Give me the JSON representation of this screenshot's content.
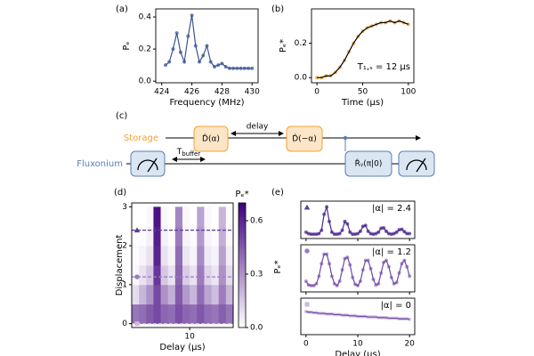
{
  "chart_data": [
    {
      "type": "line",
      "panel": "(a)",
      "xlabel": "Frequency (MHz)",
      "ylabel": "Pₑ",
      "x": [
        424.25,
        424.5,
        424.75,
        425,
        425.25,
        425.5,
        425.75,
        426,
        426.25,
        426.5,
        426.75,
        427,
        427.25,
        427.5,
        427.75,
        428,
        428.25,
        428.5,
        428.75,
        429,
        429.25,
        429.5,
        429.75,
        430
      ],
      "series": [
        {
          "color": "#4a64a0",
          "line_color": "#3c5590",
          "values": [
            0.1,
            0.12,
            0.2,
            0.3,
            0.18,
            0.12,
            0.28,
            0.41,
            0.22,
            0.12,
            0.16,
            0.22,
            0.12,
            0.09,
            0.1,
            0.11,
            0.09,
            0.08,
            0.08,
            0.08,
            0.08,
            0.08,
            0.08,
            0.08
          ]
        }
      ],
      "xlim": [
        423.6,
        430.4
      ],
      "xticks": [
        424,
        426,
        428,
        430
      ],
      "ylim": [
        -0.01,
        0.45
      ],
      "yticks": [
        {
          "value": 0,
          "label": "0.0"
        },
        {
          "value": 0.2,
          "label": "0.2"
        },
        {
          "value": 0.4,
          "label": "0.4"
        }
      ]
    },
    {
      "type": "line",
      "panel": "(b)",
      "xlabel": "Time (μs)",
      "ylabel": "Pₑ*",
      "annotation": "T₁,ₛ = 12 μs",
      "x": [
        0,
        5,
        10,
        15,
        20,
        25,
        30,
        35,
        40,
        45,
        50,
        55,
        60,
        65,
        70,
        75,
        80,
        85,
        90,
        95,
        100
      ],
      "series": [
        {
          "color": "#f5a030",
          "line_color": "#000000",
          "values": [
            0,
            0,
            0.01,
            0.01,
            0.03,
            0.06,
            0.1,
            0.15,
            0.2,
            0.24,
            0.27,
            0.29,
            0.3,
            0.31,
            0.32,
            0.32,
            0.33,
            0.32,
            0.33,
            0.32,
            0.31
          ]
        }
      ],
      "xlim": [
        -6,
        106
      ],
      "xticks": [
        0,
        50,
        100
      ],
      "ylim": [
        -0.03,
        0.4
      ],
      "yticks": [
        {
          "value": 0,
          "label": "0.0"
        },
        {
          "value": 0.2,
          "label": "0.2"
        }
      ]
    },
    {
      "type": "heatmap",
      "panel": "(d)",
      "xlabel": "Delay (μs)",
      "ylabel": "Displacement",
      "zlabel": "Pₑ*",
      "x": [
        2.5,
        3.5,
        4.5,
        5.5,
        6.5,
        7.5,
        8.5,
        9.5,
        10.5,
        11.5,
        12.5,
        13.5,
        14.5,
        15.5
      ],
      "y": [
        0.25,
        0.75,
        1.25,
        1.75,
        2.25,
        2.75
      ],
      "z": [
        [
          0.38,
          0.4,
          0.45,
          0.5,
          0.42,
          0.4,
          0.48,
          0.42,
          0.4,
          0.46,
          0.4,
          0.38,
          0.44,
          0.38
        ],
        [
          0.1,
          0.2,
          0.3,
          0.5,
          0.3,
          0.22,
          0.45,
          0.28,
          0.2,
          0.4,
          0.25,
          0.18,
          0.36,
          0.2
        ],
        [
          0.02,
          0.08,
          0.15,
          0.55,
          0.15,
          0.08,
          0.42,
          0.14,
          0.08,
          0.36,
          0.12,
          0.07,
          0.3,
          0.1
        ],
        [
          0.01,
          0.03,
          0.08,
          0.6,
          0.08,
          0.03,
          0.4,
          0.07,
          0.03,
          0.32,
          0.06,
          0.03,
          0.26,
          0.05
        ],
        [
          0,
          0.01,
          0.04,
          0.62,
          0.04,
          0.01,
          0.36,
          0.03,
          0.01,
          0.28,
          0.03,
          0.01,
          0.22,
          0.02
        ],
        [
          0,
          0,
          0.02,
          0.65,
          0.02,
          0,
          0.33,
          0.02,
          0,
          0.25,
          0.02,
          0,
          0.2,
          0.01
        ]
      ],
      "colormap": [
        "#ffffff",
        "#3f007d"
      ],
      "zlim": [
        0,
        0.7
      ],
      "zticks": [
        {
          "value": 0,
          "label": "0.0"
        },
        0.3,
        0.6
      ],
      "cuts": [
        2.4,
        1.2,
        0
      ],
      "cut_colors": [
        "#5b3a9a",
        "#9b7cc2",
        "#cdb8e0"
      ],
      "cut_markers": [
        "triangle",
        "circle",
        "square"
      ],
      "xlim": [
        2,
        16
      ],
      "xticks": [
        10
      ],
      "ylim": [
        -0.1,
        3.1
      ],
      "yticks": [
        0,
        1,
        2,
        3
      ]
    },
    {
      "type": "line",
      "panel": "(e)",
      "ylabel": "Pₑ*",
      "annotation": "|α| = 2.4",
      "x": [
        0,
        0.5,
        1,
        1.5,
        2,
        2.5,
        3,
        3.5,
        4,
        4.5,
        5,
        5.5,
        6,
        6.5,
        7,
        7.5,
        8,
        8.5,
        9,
        9.5,
        10,
        10.5,
        11,
        11.5,
        12,
        12.5,
        13,
        13.5,
        14,
        14.5,
        15,
        15.5,
        16,
        16.5,
        17,
        17.5,
        18,
        18.5,
        19,
        19.5,
        20
      ],
      "series": [
        {
          "color": "#5b3a9a",
          "line_color": "#4a2a88",
          "marker": "triangle",
          "values": [
            0.08,
            0.05,
            0.04,
            0.04,
            0.04,
            0.05,
            0.12,
            0.45,
            0.6,
            0.3,
            0.08,
            0.04,
            0.04,
            0.05,
            0.12,
            0.3,
            0.25,
            0.08,
            0.04,
            0.04,
            0.05,
            0.1,
            0.2,
            0.22,
            0.1,
            0.05,
            0.04,
            0.05,
            0.08,
            0.16,
            0.17,
            0.1,
            0.05,
            0.04,
            0.05,
            0.08,
            0.13,
            0.14,
            0.09,
            0.05,
            0.05
          ]
        }
      ],
      "xlim": [
        -1,
        21
      ],
      "xticks": [
        0,
        10,
        20
      ],
      "xticklabels": false,
      "ylim": [
        -0.05,
        0.72
      ]
    },
    {
      "type": "line",
      "annotation": "|α| = 1.2",
      "x": [
        0,
        0.5,
        1,
        1.5,
        2,
        2.5,
        3,
        3.5,
        4,
        4.5,
        5,
        5.5,
        6,
        6.5,
        7,
        7.5,
        8,
        8.5,
        9,
        9.5,
        10,
        10.5,
        11,
        11.5,
        12,
        12.5,
        13,
        13.5,
        14,
        14.5,
        15,
        15.5,
        16,
        16.5,
        17,
        17.5,
        18,
        18.5,
        19,
        19.5,
        20
      ],
      "series": [
        {
          "color": "#9b7cc2",
          "line_color": "#6e4aa6",
          "marker": "circle",
          "values": [
            0.12,
            0.06,
            0.05,
            0.05,
            0.08,
            0.2,
            0.4,
            0.55,
            0.55,
            0.4,
            0.2,
            0.08,
            0.05,
            0.12,
            0.3,
            0.48,
            0.5,
            0.38,
            0.18,
            0.07,
            0.05,
            0.12,
            0.3,
            0.45,
            0.45,
            0.32,
            0.15,
            0.06,
            0.08,
            0.25,
            0.42,
            0.45,
            0.35,
            0.18,
            0.08,
            0.1,
            0.25,
            0.4,
            0.45,
            0.35,
            0.2
          ]
        }
      ],
      "xlim": [
        -1,
        21
      ],
      "xticks": [
        0,
        10,
        20
      ],
      "xticklabels": false,
      "ylim": [
        -0.05,
        0.7
      ]
    },
    {
      "type": "line",
      "xlabel": "Delay (μs)",
      "annotation": "|α| = 0",
      "x": [
        0,
        0.5,
        1,
        1.5,
        2,
        2.5,
        3,
        3.5,
        4,
        4.5,
        5,
        5.5,
        6,
        6.5,
        7,
        7.5,
        8,
        8.5,
        9,
        9.5,
        10,
        10.5,
        11,
        11.5,
        12,
        12.5,
        13,
        13.5,
        14,
        14.5,
        15,
        15.5,
        16,
        16.5,
        17,
        17.5,
        18,
        18.5,
        19,
        19.5,
        20
      ],
      "series": [
        {
          "color": "#cdb8e0",
          "line_color": "#6e4aa6",
          "marker": "square",
          "values": [
            0.58,
            0.57,
            0.57,
            0.56,
            0.56,
            0.55,
            0.55,
            0.55,
            0.54,
            0.54,
            0.54,
            0.53,
            0.53,
            0.53,
            0.52,
            0.52,
            0.52,
            0.51,
            0.51,
            0.51,
            0.5,
            0.5,
            0.5,
            0.5,
            0.49,
            0.49,
            0.49,
            0.49,
            0.48,
            0.48,
            0.48,
            0.48,
            0.47,
            0.47,
            0.47,
            0.47,
            0.46,
            0.46,
            0.46,
            0.46,
            0.45
          ]
        }
      ],
      "xlim": [
        -1,
        21
      ],
      "xticks": [
        0,
        10,
        20
      ],
      "ylim": [
        0.2,
        0.8
      ]
    }
  ],
  "diagram": {
    "panel": "(c)",
    "storage": "Storage",
    "fluxonium": "Fluxonium",
    "delay": "delay",
    "gates": [
      "D̂(α)",
      "D̂(−α)",
      "R̂ᵧ(π|0)"
    ],
    "buffer_symbol": "T",
    "buffer_subscript": "buffer"
  }
}
